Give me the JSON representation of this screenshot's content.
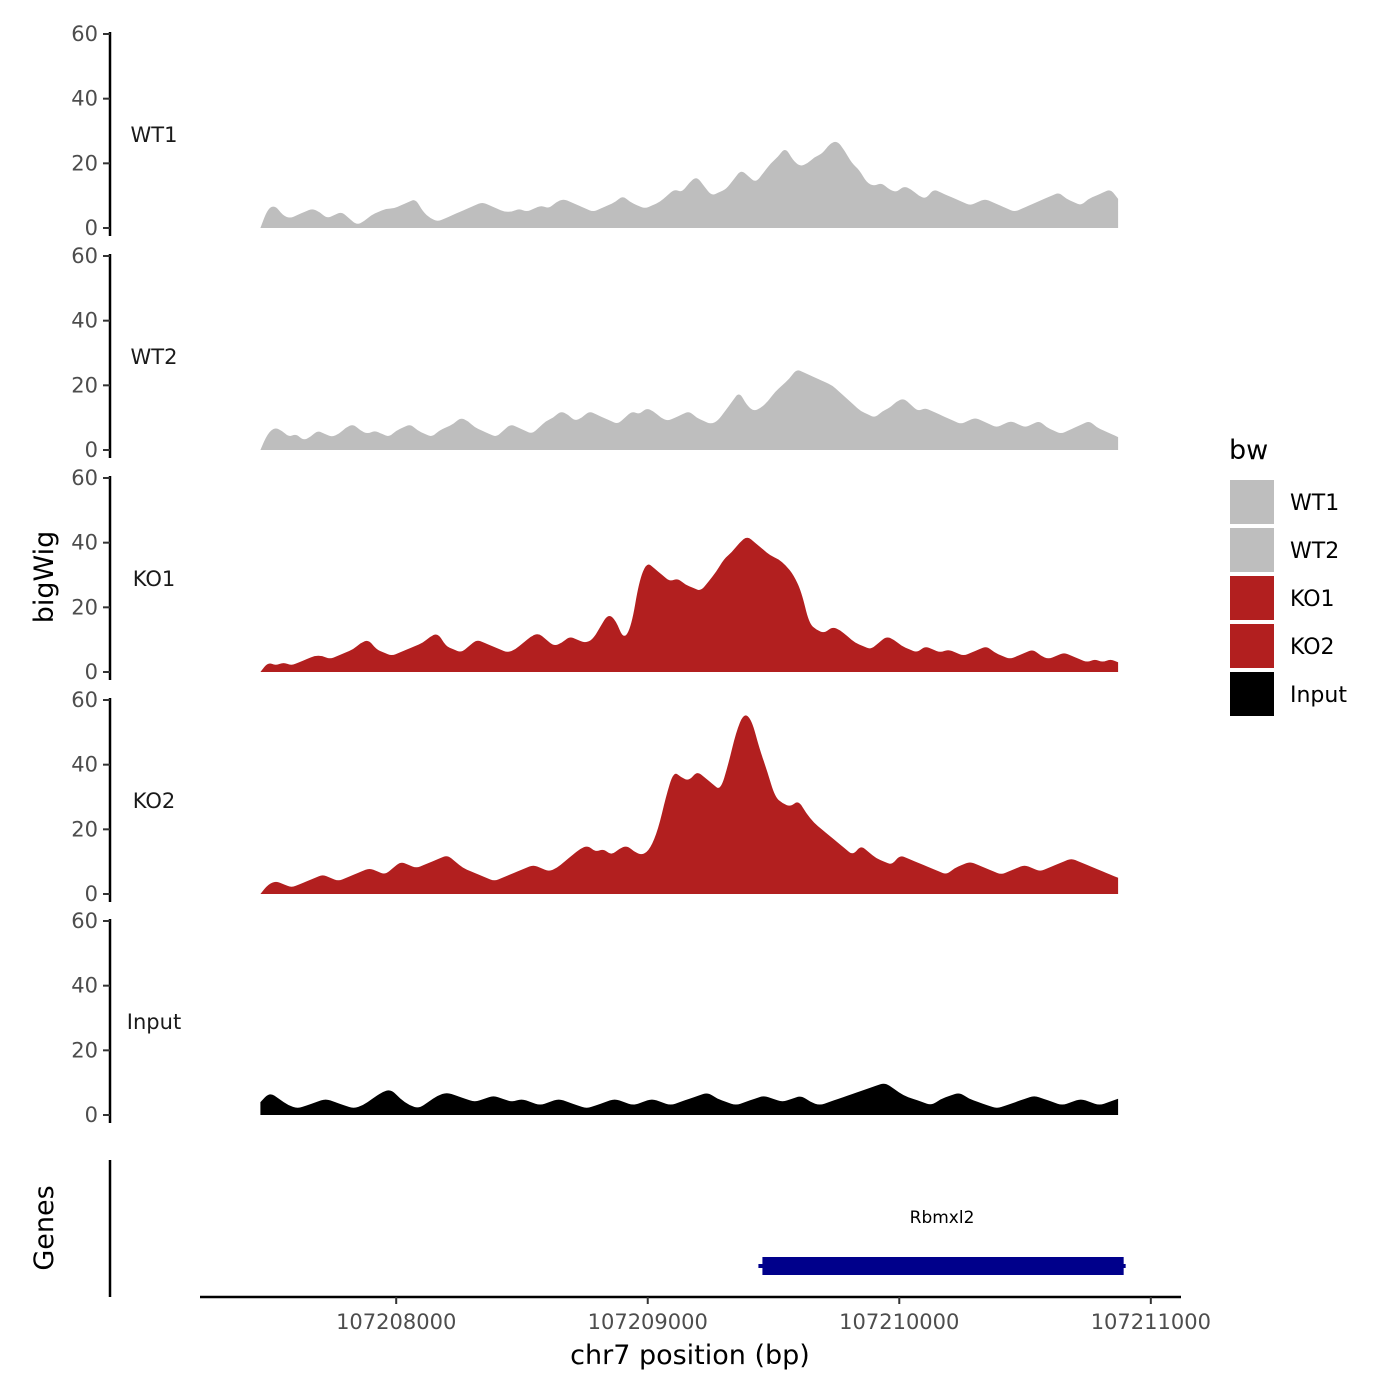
{
  "chart_data": {
    "type": "area",
    "xlabel": "chr7 position (bp)",
    "ylabel": "bigWig",
    "genes_label": "Genes",
    "xlim": [
      107207220,
      107211120
    ],
    "ylim": [
      0,
      60
    ],
    "x_ticks": [
      107208000,
      107209000,
      107210000,
      107211000
    ],
    "y_ticks": [
      0,
      20,
      40,
      60
    ],
    "x_start": 107207460,
    "x_end": 107210870,
    "legend": {
      "title": "bw",
      "entries": [
        {
          "label": "WT1",
          "color": "#bebebe"
        },
        {
          "label": "WT2",
          "color": "#bebebe"
        },
        {
          "label": "KO1",
          "color": "#b21f1f"
        },
        {
          "label": "KO2",
          "color": "#b21f1f"
        },
        {
          "label": "Input",
          "color": "#000000"
        }
      ]
    },
    "series": [
      {
        "name": "WT1",
        "color": "#bebebe",
        "values": [
          0,
          6,
          7,
          4,
          3,
          4,
          5,
          6,
          5,
          3,
          4,
          5,
          3,
          1,
          2,
          4,
          5,
          6,
          6,
          7,
          8,
          9,
          5,
          3,
          2,
          3,
          4,
          5,
          6,
          7,
          8,
          7,
          6,
          5,
          5,
          6,
          5,
          6,
          7,
          6,
          8,
          9,
          8,
          7,
          6,
          5,
          6,
          7,
          8,
          10,
          8,
          7,
          6,
          7,
          8,
          10,
          12,
          11,
          14,
          16,
          13,
          10,
          11,
          12,
          15,
          18,
          16,
          14,
          17,
          20,
          22,
          25,
          21,
          19,
          20,
          22,
          23,
          26,
          27,
          24,
          20,
          18,
          14,
          13,
          14,
          12,
          11,
          13,
          12,
          10,
          9,
          12,
          11,
          10,
          9,
          8,
          7,
          8,
          9,
          8,
          7,
          6,
          5,
          6,
          7,
          8,
          9,
          10,
          11,
          9,
          8,
          7,
          9,
          10,
          11,
          12,
          9
        ]
      },
      {
        "name": "WT2",
        "color": "#bebebe",
        "values": [
          0,
          5,
          7,
          6,
          4,
          5,
          3,
          4,
          6,
          5,
          4,
          5,
          7,
          8,
          6,
          5,
          6,
          5,
          4,
          6,
          7,
          8,
          6,
          5,
          4,
          6,
          7,
          8,
          10,
          9,
          7,
          6,
          5,
          4,
          6,
          8,
          7,
          6,
          5,
          7,
          9,
          10,
          12,
          11,
          9,
          10,
          12,
          11,
          10,
          9,
          8,
          10,
          12,
          11,
          13,
          12,
          10,
          9,
          10,
          11,
          12,
          10,
          9,
          8,
          9,
          12,
          15,
          18,
          14,
          12,
          13,
          15,
          18,
          20,
          22,
          25,
          24,
          23,
          22,
          21,
          20,
          18,
          16,
          14,
          12,
          11,
          10,
          12,
          13,
          15,
          16,
          14,
          12,
          13,
          12,
          11,
          10,
          9,
          8,
          9,
          10,
          9,
          8,
          7,
          8,
          9,
          8,
          7,
          8,
          9,
          7,
          6,
          5,
          6,
          7,
          8,
          9,
          7,
          6,
          5,
          4
        ]
      },
      {
        "name": "KO1",
        "color": "#b21f1f",
        "values": [
          0,
          3,
          2,
          3,
          2,
          3,
          4,
          5,
          5,
          4,
          5,
          6,
          7,
          9,
          10,
          7,
          6,
          5,
          6,
          7,
          8,
          9,
          11,
          12,
          8,
          7,
          6,
          8,
          10,
          9,
          8,
          7,
          6,
          7,
          9,
          11,
          12,
          10,
          8,
          9,
          11,
          10,
          9,
          10,
          14,
          18,
          16,
          10,
          14,
          28,
          34,
          32,
          30,
          28,
          29,
          27,
          26,
          25,
          28,
          31,
          35,
          37,
          40,
          42,
          40,
          38,
          36,
          35,
          33,
          30,
          25,
          15,
          13,
          12,
          14,
          13,
          11,
          9,
          8,
          7,
          9,
          11,
          10,
          8,
          7,
          6,
          8,
          7,
          6,
          7,
          6,
          5,
          6,
          7,
          8,
          6,
          5,
          4,
          5,
          6,
          7,
          5,
          4,
          5,
          6,
          5,
          4,
          3,
          4,
          3,
          4,
          3
        ]
      },
      {
        "name": "KO2",
        "color": "#b21f1f",
        "values": [
          0,
          3,
          4,
          3,
          2,
          3,
          4,
          5,
          6,
          5,
          4,
          5,
          6,
          7,
          8,
          7,
          6,
          8,
          10,
          9,
          8,
          9,
          10,
          11,
          12,
          10,
          8,
          7,
          6,
          5,
          4,
          5,
          6,
          7,
          8,
          9,
          8,
          7,
          8,
          10,
          12,
          14,
          15,
          13,
          14,
          12,
          14,
          15,
          13,
          12,
          14,
          20,
          30,
          38,
          36,
          35,
          38,
          36,
          34,
          32,
          40,
          50,
          56,
          54,
          45,
          38,
          30,
          28,
          27,
          29,
          25,
          22,
          20,
          18,
          16,
          14,
          12,
          15,
          13,
          11,
          10,
          9,
          12,
          11,
          10,
          9,
          8,
          7,
          6,
          8,
          9,
          10,
          9,
          8,
          7,
          6,
          7,
          8,
          9,
          8,
          7,
          8,
          9,
          10,
          11,
          10,
          9,
          8,
          7,
          6,
          5
        ]
      },
      {
        "name": "Input",
        "color": "#000000",
        "values": [
          4,
          7,
          5,
          3,
          2,
          3,
          4,
          5,
          4,
          3,
          2,
          3,
          5,
          7,
          8,
          5,
          3,
          2,
          4,
          6,
          7,
          6,
          5,
          4,
          5,
          6,
          5,
          4,
          5,
          4,
          3,
          4,
          5,
          4,
          3,
          2,
          3,
          4,
          5,
          4,
          3,
          4,
          5,
          4,
          3,
          4,
          5,
          6,
          7,
          5,
          4,
          3,
          4,
          5,
          6,
          5,
          4,
          5,
          6,
          4,
          3,
          4,
          5,
          6,
          7,
          8,
          9,
          10,
          8,
          6,
          5,
          4,
          3,
          5,
          6,
          7,
          5,
          4,
          3,
          2,
          3,
          4,
          5,
          6,
          5,
          4,
          3,
          4,
          5,
          4,
          3,
          4,
          5
        ]
      }
    ],
    "genes": [
      {
        "name": "Rbmxl2",
        "start": 107209440,
        "end": 107210900,
        "strand": "+",
        "color": "#00008b"
      }
    ]
  }
}
